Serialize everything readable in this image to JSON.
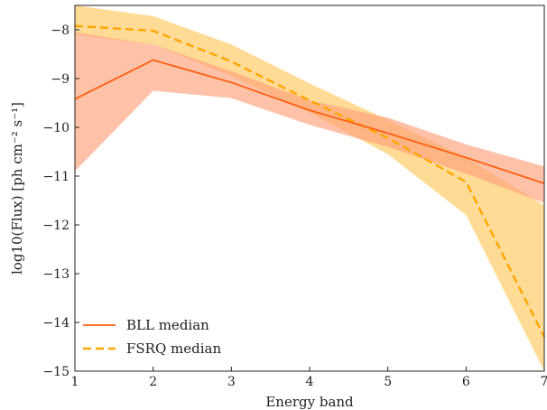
{
  "chart_data": {
    "type": "line",
    "xlabel": "Energy band",
    "ylabel": "log10(Flux) [ph cm⁻² s⁻¹]",
    "xlim": [
      1,
      7
    ],
    "ylim": [
      -15,
      -7.5
    ],
    "x": [
      1,
      2,
      3,
      4,
      5,
      6,
      7
    ],
    "x_ticks": [
      "1",
      "2",
      "3",
      "4",
      "5",
      "6",
      "7"
    ],
    "y_ticks": [
      -8,
      -9,
      -10,
      -11,
      -12,
      -13,
      -14,
      -15
    ],
    "y_tick_labels": [
      "−8",
      "−9",
      "−10",
      "−11",
      "−12",
      "−13",
      "−14",
      "−15"
    ],
    "grid": false,
    "legend_position": "bottom-left",
    "series": [
      {
        "name": "FSRQ median",
        "style": "dashed",
        "color": "#FFA500",
        "band_color": "#FFD27A",
        "median": [
          -7.92,
          -8.02,
          -8.65,
          -9.45,
          -10.22,
          -11.12,
          -14.3
        ],
        "band_lower": [
          -8.1,
          -8.3,
          -8.95,
          -9.7,
          -10.55,
          -11.8,
          -15.0
        ],
        "band_upper": [
          -7.5,
          -7.72,
          -8.3,
          -9.1,
          -9.85,
          -10.62,
          -11.6
        ]
      },
      {
        "name": "BLL median",
        "style": "solid",
        "color": "#FF6010",
        "band_color": "#FFA07A",
        "median": [
          -9.42,
          -8.62,
          -9.08,
          -9.65,
          -10.12,
          -10.62,
          -11.15
        ],
        "band_lower": [
          -10.9,
          -9.25,
          -9.4,
          -9.95,
          -10.4,
          -10.95,
          -11.55
        ],
        "band_upper": [
          -8.05,
          -8.3,
          -8.85,
          -9.45,
          -9.8,
          -10.35,
          -10.8
        ]
      }
    ]
  }
}
